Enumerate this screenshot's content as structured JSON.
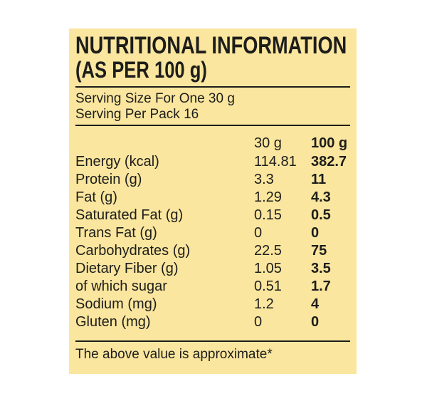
{
  "label": {
    "title_line1": "NUTRITIONAL INFORMATION",
    "title_line2": "(AS PER 100 g)",
    "serving_size": "Serving Size For One 30 g",
    "serving_per_pack": "Serving Per Pack 16",
    "table": {
      "columns": [
        "30 g",
        "100 g"
      ],
      "rows": [
        {
          "label": "Energy (kcal)",
          "v30": "114.81",
          "v100": "382.7"
        },
        {
          "label": "Protein (g)",
          "v30": "3.3",
          "v100": "11"
        },
        {
          "label": "Fat (g)",
          "v30": "1.29",
          "v100": "4.3"
        },
        {
          "label": "Saturated Fat (g)",
          "v30": "0.15",
          "v100": "0.5"
        },
        {
          "label": "Trans Fat (g)",
          "v30": "0",
          "v100": "0"
        },
        {
          "label": "Carbohydrates (g)",
          "v30": "22.5",
          "v100": "75"
        },
        {
          "label": "Dietary Fiber (g)",
          "v30": "1.05",
          "v100": "3.5"
        },
        {
          "label": "of which sugar",
          "v30": "0.51",
          "v100": "1.7"
        },
        {
          "label": "Sodium (mg)",
          "v30": "1.2",
          "v100": "4"
        },
        {
          "label": "Gluten (mg)",
          "v30": "0",
          "v100": "0"
        }
      ]
    },
    "footnote": "The above value is approximate*"
  },
  "colors": {
    "panel_background": "#FAE69E",
    "text": "#1D1D1B",
    "page_background": "#FFFFFF"
  }
}
